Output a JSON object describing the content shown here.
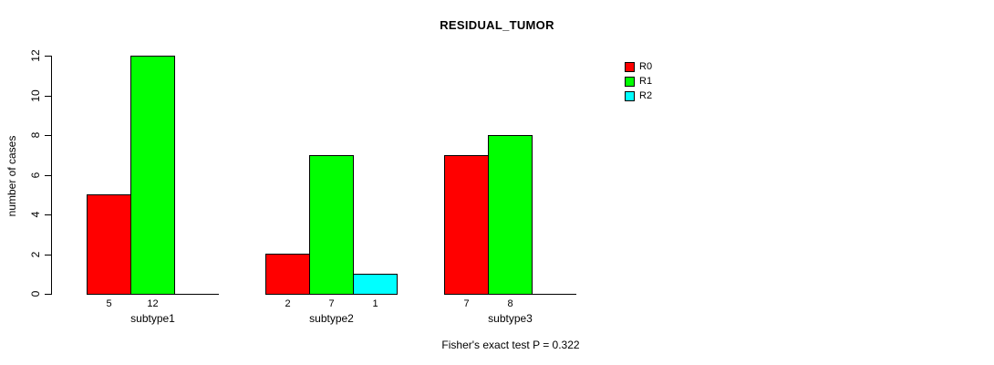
{
  "figure": {
    "background": "#FFFFFF",
    "text_color": "#000000"
  },
  "chart_data": {
    "type": "bar",
    "title": "RESIDUAL_TUMOR",
    "xlabel": "",
    "ylabel": "number of cases",
    "categories": [
      "subtype1",
      "subtype2",
      "subtype3"
    ],
    "series": [
      {
        "name": "R0",
        "color": "#FF0000",
        "values": [
          5,
          2,
          7
        ]
      },
      {
        "name": "R1",
        "color": "#00FF00",
        "values": [
          12,
          7,
          8
        ]
      },
      {
        "name": "R2",
        "color": "#00FFFF",
        "values": [
          0,
          1,
          0
        ]
      }
    ],
    "bar_value_labels": [
      [
        "5",
        "12",
        ""
      ],
      [
        "2",
        "7",
        "1"
      ],
      [
        "7",
        "8",
        ""
      ]
    ],
    "ylim": [
      0,
      12
    ],
    "yticks": [
      0,
      2,
      4,
      6,
      8,
      10,
      12
    ],
    "grid": false,
    "legend_position": "top-right",
    "bar_border_color": "#000000",
    "annotation": "Fisher's exact test P = 0.322"
  }
}
